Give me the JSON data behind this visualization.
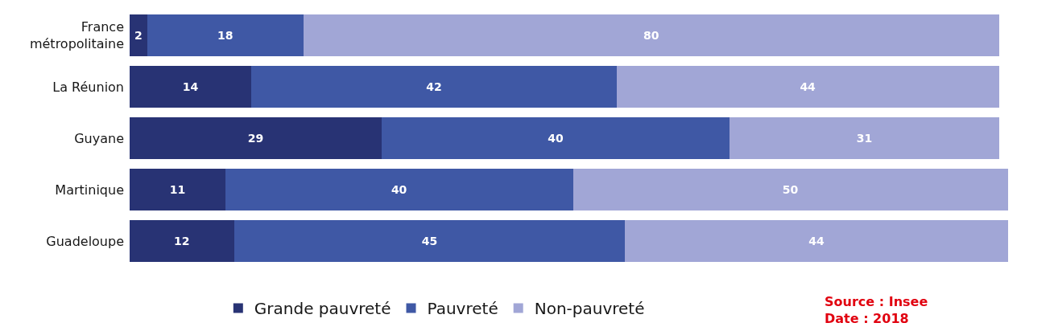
{
  "chart_data": {
    "type": "bar",
    "orientation": "horizontal",
    "stacked": true,
    "data_labels": true,
    "legend": "bottom",
    "tick_labels": "y",
    "categories": [
      "France\nmétropolitaine",
      "La Réunion",
      "Guyane",
      "Martinique",
      "Guadeloupe"
    ],
    "series": [
      {
        "name": "Grande pauvreté",
        "color": "#283374",
        "values": [
          2,
          14,
          29,
          11,
          12
        ]
      },
      {
        "name": "Pauvreté",
        "color": "#3f58a5",
        "values": [
          18,
          42,
          40,
          40,
          45
        ]
      },
      {
        "name": "Non-pauvreté",
        "color": "#a1a6d6",
        "values": [
          80,
          44,
          31,
          50,
          44
        ]
      }
    ],
    "annotations": [
      "Source : Insee",
      "Date : 2018"
    ]
  }
}
